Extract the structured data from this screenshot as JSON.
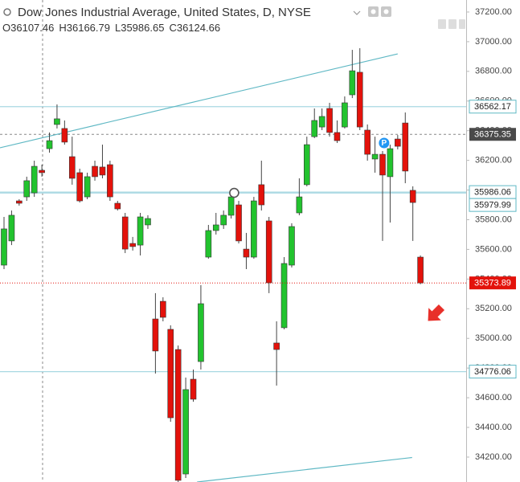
{
  "chart_data": {
    "type": "candlestick",
    "title": "Dow Jones Industrial Average, United States, D, NYSE",
    "ohlc_legend": [
      {
        "label": "O",
        "value": "36107.46"
      },
      {
        "label": "H",
        "value": "36166.79"
      },
      {
        "label": "L",
        "value": "35986.65"
      },
      {
        "label": "C",
        "value": "36124.66"
      }
    ],
    "up_color": "#22c32e",
    "down_color": "#e3120b",
    "open": [
      35494,
      35657,
      35927,
      35954,
      35981,
      36133,
      36279,
      36442,
      36415,
      36225,
      36117,
      35954,
      36160,
      36155,
      36171,
      35911,
      35819,
      35640,
      35629,
      35765,
      35131,
      35250,
      35061,
      34925,
      34086,
      34725,
      34844,
      35548,
      35727,
      35765,
      35830,
      35900,
      35602,
      35548,
      36036,
      35792,
      34969,
      35072,
      35494,
      35846,
      36036,
      36360,
      36425,
      36550,
      36388,
      36425,
      36642,
      36794,
      36404,
      36209,
      36241,
      36090,
      36344,
      36452,
      35998,
      35548
    ],
    "high": [
      35819,
      35862,
      35938,
      36090,
      36198,
      36171,
      36388,
      36577,
      36469,
      36360,
      36144,
      36117,
      36198,
      36306,
      36198,
      35927,
      35846,
      35684,
      35846,
      35830,
      35305,
      35277,
      35088,
      34952,
      34736,
      34790,
      35359,
      35765,
      35846,
      35862,
      35981,
      35927,
      35711,
      35954,
      36198,
      35819,
      35115,
      35548,
      35776,
      36079,
      36360,
      36550,
      36550,
      36588,
      36469,
      36631,
      36945,
      36956,
      36442,
      36360,
      36263,
      36306,
      36371,
      36523,
      36025,
      35559
    ],
    "low": [
      35467,
      35629,
      35895,
      35927,
      35954,
      36090,
      36252,
      36415,
      36306,
      36036,
      35916,
      35938,
      36063,
      36079,
      35927,
      35862,
      35575,
      35592,
      35559,
      35738,
      34763,
      35115,
      34438,
      34032,
      34059,
      34573,
      34790,
      35537,
      35700,
      35738,
      35808,
      35640,
      35467,
      35537,
      35862,
      35305,
      34682,
      35061,
      35478,
      35830,
      36025,
      36350,
      36404,
      36360,
      36317,
      36415,
      36620,
      36404,
      36198,
      36117,
      35657,
      35781,
      36274,
      36046,
      35657,
      35365
    ],
    "close": [
      35738,
      35830,
      35911,
      36063,
      36160,
      36117,
      36333,
      36480,
      36323,
      36079,
      35927,
      36090,
      36090,
      36101,
      35954,
      35873,
      35602,
      35619,
      35819,
      35808,
      34915,
      35142,
      34465,
      34043,
      34655,
      34590,
      35234,
      35727,
      35765,
      35830,
      35954,
      35657,
      35548,
      35927,
      35900,
      35375,
      34925,
      35505,
      35754,
      35954,
      36306,
      36469,
      36496,
      36388,
      36333,
      36588,
      36804,
      36425,
      36241,
      36241,
      36101,
      36279,
      36295,
      36128,
      35916,
      35373.89
    ],
    "ylim": [
      34032,
      37281
    ],
    "yticks": [
      {
        "value": 34200,
        "label": "34200.00"
      },
      {
        "value": 34400,
        "label": "34400.00"
      },
      {
        "value": 34600,
        "label": "34600.00"
      },
      {
        "value": 34800,
        "label": "34800.00"
      },
      {
        "value": 35000,
        "label": "35000.00"
      },
      {
        "value": 35200,
        "label": "35200.00"
      },
      {
        "value": 35400,
        "label": "35400.00"
      },
      {
        "value": 35600,
        "label": "35600.00"
      },
      {
        "value": 35800,
        "label": "35800.00"
      },
      {
        "value": 36000,
        "label": "36000.00"
      },
      {
        "value": 36200,
        "label": "36200.00"
      },
      {
        "value": 36400,
        "label": "36400.00"
      },
      {
        "value": 36600,
        "label": "36600.00"
      },
      {
        "value": 36800,
        "label": "36800.00"
      },
      {
        "value": 37000,
        "label": "37000.00"
      },
      {
        "value": 37200,
        "label": "37200.00"
      }
    ],
    "grid": false,
    "levels": [
      {
        "value": 36562.17,
        "color": "#a8d8e2"
      },
      {
        "value": 35986.06,
        "color": "#a8d8e2"
      },
      {
        "value": 35979.99,
        "color": "#a8d8e2"
      },
      {
        "value": 34776.06,
        "color": "#a8d8e2"
      }
    ],
    "crosshair_price": 36375.35,
    "trendlines": [
      {
        "start_index": -0.53,
        "start_price": 36285,
        "end_index": 52.0,
        "end_price": 36918,
        "color": "#5fb8c4"
      },
      {
        "start_index": 25.5,
        "start_price": 34032,
        "end_index": 53.9,
        "end_price": 34197,
        "color": "#5fb8c4"
      }
    ],
    "markers": [
      {
        "index": 30.4,
        "price": 35981
      },
      {
        "index": 50.2,
        "price": 36317,
        "label": "P"
      }
    ]
  }
}
